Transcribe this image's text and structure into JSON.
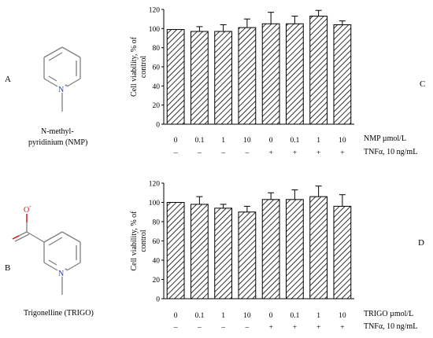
{
  "panels": {
    "A": "A",
    "B": "B",
    "C": "C",
    "D": "D"
  },
  "structures": {
    "nmp": {
      "line1": "N-methyl-",
      "line2": "pyridinium  (NMP)",
      "n_charge": "+"
    },
    "trigo": {
      "label": "Trigonelline  (TRIGO)",
      "o_charge": "-",
      "o_label": "O",
      "n_charge": "+"
    }
  },
  "colors": {
    "bond": "#7f7f7f",
    "nitrogen": "#1f3fd0",
    "oxygen": "#e01010",
    "bar_edge": "#000000",
    "hatch": "#000000"
  },
  "chart_data": [
    {
      "type": "bar",
      "panel": "C",
      "categories": [
        "0",
        "0.1",
        "1",
        "10",
        "0",
        "0.1",
        "1",
        "10"
      ],
      "values": [
        99,
        97,
        97,
        101,
        105,
        105,
        113,
        104
      ],
      "errors": [
        0,
        5,
        7,
        9,
        12,
        8,
        6,
        4
      ],
      "tnf_row": [
        "–",
        "–",
        "–",
        "–",
        "+",
        "+",
        "+",
        "+"
      ],
      "conc_label": "NMP µmol/L",
      "tnf_label": "TNFα, 10 ng/mL",
      "ylabel_line1": "Cell viability, % of",
      "ylabel_line2": "control",
      "ylim": [
        0,
        120
      ],
      "yticks": [
        "0",
        "20",
        "40",
        "60",
        "80",
        "100",
        "120"
      ],
      "hatch": "diagonal"
    },
    {
      "type": "bar",
      "panel": "D",
      "categories": [
        "0",
        "0.1",
        "1",
        "10",
        "0",
        "0.1",
        "1",
        "10"
      ],
      "values": [
        100,
        98,
        94,
        90,
        103,
        103,
        106,
        96
      ],
      "errors": [
        0,
        8,
        4,
        6,
        7,
        10,
        11,
        12
      ],
      "tnf_row": [
        "–",
        "–",
        "–",
        "–",
        "+",
        "+",
        "+",
        "+"
      ],
      "conc_label": "TRIGO µmol/L",
      "tnf_label": "TNFα, 10 ng/mL",
      "ylabel_line1": "Cell viability, % of",
      "ylabel_line2": "control",
      "ylim": [
        0,
        120
      ],
      "yticks": [
        "0",
        "20",
        "40",
        "60",
        "80",
        "100",
        "120"
      ],
      "hatch": "diagonal"
    }
  ]
}
